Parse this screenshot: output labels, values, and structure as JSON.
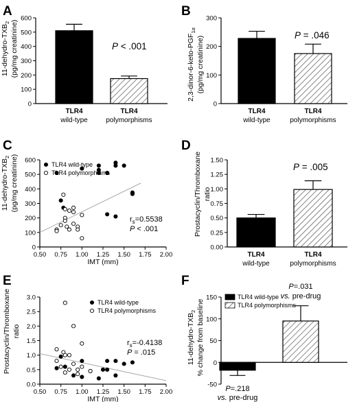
{
  "colors": {
    "ink": "#000000",
    "fill_wild": "#000000",
    "fill_poly": "#ffffff",
    "trend": "#aaaaaa"
  },
  "chart_data": [
    {
      "panel": "A",
      "type": "bar",
      "ylabel_main": "11-dehydro-TXB",
      "ylabel_sub": "2",
      "ylabel_unit": "(pg/mg creatinine)",
      "ylim": [
        0,
        600
      ],
      "yticks": [
        0,
        100,
        200,
        300,
        400,
        500,
        600
      ],
      "categories": [
        {
          "line1": "TLR4",
          "line2": "wild-type",
          "pattern": "solid"
        },
        {
          "line1": "TLR4",
          "line2": "polymorphisms",
          "pattern": "hatch"
        }
      ],
      "values": [
        510,
        175
      ],
      "errors": [
        45,
        18
      ],
      "annotation_p": "P",
      "annotation_rest": " < .001"
    },
    {
      "panel": "B",
      "type": "bar",
      "ylabel_main": "2,3-dinor-6-keto-PGF",
      "ylabel_sub": "1α",
      "ylabel_unit": "(pg/mg creatinine)",
      "ylim": [
        0,
        300
      ],
      "yticks": [
        0,
        100,
        200,
        300
      ],
      "categories": [
        {
          "line1": "TLR4",
          "line2": "wild-type",
          "pattern": "solid"
        },
        {
          "line1": "TLR4",
          "line2": "polymorphisms",
          "pattern": "hatch"
        }
      ],
      "values": [
        228,
        175
      ],
      "errors": [
        25,
        33
      ],
      "annotation_p": "P",
      "annotation_rest": " = .046"
    },
    {
      "panel": "C",
      "type": "scatter",
      "ylabel_main": "11-dehydro-TXB",
      "ylabel_sub": "2",
      "ylabel_unit": "(pg/mg creatinine)",
      "xlabel": "IMT (mm)",
      "xlim": [
        0.5,
        2.0
      ],
      "ylim": [
        0,
        600
      ],
      "xticks": [
        "0.50",
        "0.75",
        "1.00",
        "1.25",
        "1.50",
        "1.75",
        "2.00"
      ],
      "yticks": [
        0,
        100,
        200,
        300,
        400,
        500,
        600
      ],
      "series": [
        {
          "name": "TLR4 wild-type",
          "marker": "filled",
          "points": [
            [
              0.7,
              510
            ],
            [
              0.75,
              320
            ],
            [
              0.78,
              270
            ],
            [
              1.0,
              540
            ],
            [
              1.2,
              560
            ],
            [
              1.2,
              530
            ],
            [
              1.2,
              510
            ],
            [
              1.3,
              510
            ],
            [
              1.3,
              225
            ],
            [
              1.4,
              580
            ],
            [
              1.4,
              560
            ],
            [
              1.4,
              210
            ],
            [
              1.5,
              560
            ],
            [
              1.6,
              375
            ],
            [
              1.6,
              370
            ],
            [
              1.6,
              365
            ]
          ]
        },
        {
          "name": "TLR4 polymorphisms",
          "marker": "open",
          "points": [
            [
              0.7,
              120
            ],
            [
              0.7,
              110
            ],
            [
              0.75,
              150
            ],
            [
              0.78,
              360
            ],
            [
              0.8,
              260
            ],
            [
              0.8,
              200
            ],
            [
              0.8,
              180
            ],
            [
              0.82,
              140
            ],
            [
              0.85,
              250
            ],
            [
              0.85,
              120
            ],
            [
              0.9,
              270
            ],
            [
              0.9,
              240
            ],
            [
              0.9,
              160
            ],
            [
              0.95,
              140
            ],
            [
              0.95,
              120
            ],
            [
              1.0,
              220
            ],
            [
              1.0,
              60
            ]
          ]
        }
      ],
      "trend": [
        [
          0.5,
          100
        ],
        [
          1.7,
          440
        ]
      ],
      "rs_text": "r",
      "rs_sub": "s",
      "rs_value": "=0.5538",
      "p_text": "P",
      "p_rest": " < .001"
    },
    {
      "panel": "D",
      "type": "bar",
      "ylabel_main": "Prostacyclin/Thromboxane",
      "ylabel_unit": "ratio",
      "ylim": [
        0,
        1.5
      ],
      "yticks": [
        "0.00",
        "0.25",
        "0.50",
        "0.75",
        "1.00",
        "1.25",
        "1.50"
      ],
      "categories": [
        {
          "line1": "TLR4",
          "line2": "wild-type",
          "pattern": "solid"
        },
        {
          "line1": "TLR4",
          "line2": "polymorphisms",
          "pattern": "hatch"
        }
      ],
      "values": [
        0.5,
        0.99
      ],
      "errors": [
        0.06,
        0.15
      ],
      "annotation_p": "P",
      "annotation_rest": " = .005"
    },
    {
      "panel": "E",
      "type": "scatter",
      "ylabel_main": "Prostacyclin/Thromboxane",
      "ylabel_unit": "ratio",
      "xlabel": "IMT (mm)",
      "xlim": [
        0.5,
        2.0
      ],
      "ylim": [
        0,
        3.0
      ],
      "xticks": [
        "0.50",
        "0.75",
        "1.00",
        "1.25",
        "1.50",
        "1.75",
        "2.00"
      ],
      "yticks": [
        "0.0",
        "0.5",
        "1.0",
        "1.5",
        "2.0",
        "2.5",
        "3.0"
      ],
      "series": [
        {
          "name": "TLR4 wild-type",
          "marker": "filled",
          "points": [
            [
              0.7,
              0.55
            ],
            [
              0.75,
              0.95
            ],
            [
              0.8,
              0.6
            ],
            [
              0.9,
              0.3
            ],
            [
              1.0,
              0.8
            ],
            [
              1.0,
              0.25
            ],
            [
              1.1,
              0.45
            ],
            [
              1.2,
              0.2
            ],
            [
              1.25,
              0.5
            ],
            [
              1.3,
              0.8
            ],
            [
              1.3,
              0.5
            ],
            [
              1.4,
              0.8
            ],
            [
              1.4,
              0.3
            ],
            [
              1.5,
              0.7
            ],
            [
              1.6,
              0.75
            ]
          ]
        },
        {
          "name": "TLR4 polymorphisms",
          "marker": "open",
          "points": [
            [
              0.7,
              1.2
            ],
            [
              0.7,
              0.8
            ],
            [
              0.75,
              0.6
            ],
            [
              0.78,
              1.1
            ],
            [
              0.8,
              2.8
            ],
            [
              0.8,
              0.4
            ],
            [
              0.85,
              1.0
            ],
            [
              0.9,
              2.0
            ],
            [
              0.9,
              0.7
            ],
            [
              0.95,
              0.5
            ],
            [
              0.95,
              0.35
            ],
            [
              1.0,
              1.4
            ],
            [
              1.0,
              0.6
            ],
            [
              0.85,
              0.5
            ],
            [
              1.1,
              0.45
            ],
            [
              0.8,
              1.0
            ]
          ]
        }
      ],
      "trend": [
        [
          0.5,
          1.05
        ],
        [
          2.0,
          0.12
        ]
      ],
      "rs_text": "r",
      "rs_sub": "s",
      "rs_value": "=-0.4138",
      "p_text": "P",
      "p_rest": " = .015"
    },
    {
      "panel": "F",
      "type": "bar",
      "ylabel_main": "11-dehydro-TXB",
      "ylabel_sub": "2",
      "ylabel_unit": "% change from baseline",
      "ylim": [
        -50,
        150
      ],
      "yticks": [
        -50,
        0,
        50,
        100,
        150
      ],
      "series": [
        {
          "name": "TLR4 wild-type",
          "pattern": "solid"
        },
        {
          "name": "TLR4 polymorphisms",
          "pattern": "hatch"
        }
      ],
      "values": [
        -18,
        95
      ],
      "errors": [
        12,
        35
      ],
      "annotations": [
        {
          "p": "P",
          "rest": "=.218",
          "vs": "vs.",
          "pre": " pre-drug"
        },
        {
          "p": "P",
          "rest": "=.031",
          "vs": "vs.",
          "pre": " pre-drug"
        }
      ]
    }
  ]
}
